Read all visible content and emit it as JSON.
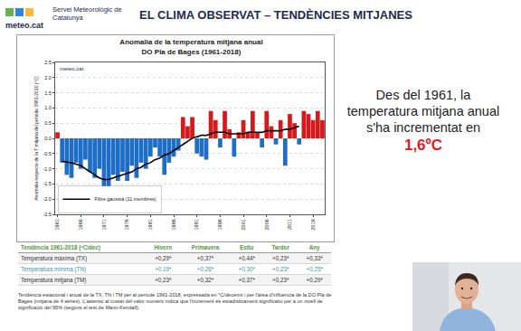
{
  "header": {
    "logo": "meteo.cat",
    "organization": "Servei Meteorològic de Catalunya",
    "title": "EL CLIMA OBSERVAT – TENDÈNCIES MITJANES"
  },
  "chart_data": {
    "type": "bar",
    "title": "Anomalia de la temperatura mitjana anual",
    "subtitle": "DO Pla de Bages (1961-2018)",
    "y_label": "Anomalia respecte de la T mitjana del període 1981-2010 (°C)",
    "annotations": [
      "meteo.cat"
    ],
    "x": [
      1961,
      1962,
      1963,
      1964,
      1965,
      1966,
      1967,
      1968,
      1969,
      1970,
      1971,
      1972,
      1973,
      1974,
      1975,
      1976,
      1977,
      1978,
      1979,
      1980,
      1981,
      1982,
      1983,
      1984,
      1985,
      1986,
      1987,
      1988,
      1989,
      1990,
      1991,
      1992,
      1993,
      1994,
      1995,
      1996,
      1997,
      1998,
      1999,
      2000,
      2001,
      2002,
      2003,
      2004,
      2005,
      2006,
      2007,
      2008,
      2009,
      2010,
      2011,
      2012,
      2013,
      2014,
      2015,
      2016,
      2017,
      2018
    ],
    "series": [
      {
        "type": "bar",
        "values": [
          0.2,
          -0.8,
          -1.2,
          -1.3,
          -0.8,
          -1.0,
          -0.7,
          -1.1,
          -1.3,
          -1.0,
          -1.6,
          -1.9,
          -1.2,
          -1.4,
          -1.1,
          -1.4,
          -0.9,
          -1.3,
          -0.8,
          -1.0,
          -0.6,
          -0.3,
          -0.6,
          -1.2,
          -0.8,
          -0.6,
          -0.4,
          0.7,
          0.4,
          0.7,
          -0.5,
          -0.6,
          -0.7,
          0.9,
          0.6,
          -0.3,
          0.9,
          0.3,
          -0.6,
          0.2,
          0.6,
          0.2,
          0.9,
          0.2,
          -0.3,
          0.9,
          0.4,
          -0.2,
          0.6,
          -0.9,
          0.8,
          0.5,
          -0.2,
          0.9,
          0.8,
          0.6,
          0.9,
          0.6
        ],
        "colors": [
          "#d7191c",
          "#1e6ec8",
          "#1e6ec8",
          "#1e6ec8",
          "#1e6ec8",
          "#1e6ec8",
          "#1e6ec8",
          "#1e6ec8",
          "#1e6ec8",
          "#1e6ec8",
          "#1e6ec8",
          "#1e6ec8",
          "#1e6ec8",
          "#1e6ec8",
          "#1e6ec8",
          "#1e6ec8",
          "#1e6ec8",
          "#1e6ec8",
          "#1e6ec8",
          "#1e6ec8",
          "#1e6ec8",
          "#1e6ec8",
          "#1e6ec8",
          "#1e6ec8",
          "#1e6ec8",
          "#1e6ec8",
          "#1e6ec8",
          "#d7191c",
          "#d7191c",
          "#d7191c",
          "#1e6ec8",
          "#1e6ec8",
          "#1e6ec8",
          "#d7191c",
          "#d7191c",
          "#1e6ec8",
          "#d7191c",
          "#d7191c",
          "#1e6ec8",
          "#d7191c",
          "#d7191c",
          "#d7191c",
          "#d7191c",
          "#d7191c",
          "#1e6ec8",
          "#d7191c",
          "#d7191c",
          "#1e6ec8",
          "#d7191c",
          "#1e6ec8",
          "#d7191c",
          "#d7191c",
          "#1e6ec8",
          "#d7191c",
          "#d7191c",
          "#d7191c",
          "#d7191c",
          "#d7191c"
        ]
      },
      {
        "type": "line",
        "name": "Filtre gaussià (11 membres)",
        "color": "#000000",
        "values": [
          null,
          -0.75,
          -0.78,
          -0.8,
          -0.85,
          -0.9,
          -1.0,
          -1.1,
          -1.2,
          -1.3,
          -1.35,
          -1.35,
          -1.3,
          -1.25,
          -1.2,
          -1.15,
          -1.1,
          -1.0,
          -0.95,
          -0.85,
          -0.8,
          -0.7,
          -0.65,
          -0.55,
          -0.5,
          -0.4,
          -0.3,
          -0.2,
          -0.1,
          0.0,
          0.05,
          0.1,
          0.1,
          0.15,
          0.2,
          0.2,
          0.2,
          0.15,
          0.15,
          0.15,
          0.15,
          0.2,
          0.2,
          0.2,
          0.2,
          0.25,
          0.25,
          0.25,
          0.25,
          0.3,
          0.3,
          0.35,
          0.4,
          null,
          null,
          null,
          null,
          null
        ]
      }
    ],
    "xlim": [
      1960.5,
      2018.5
    ],
    "xticks": [
      1961,
      1966,
      1971,
      1976,
      1981,
      1986,
      1991,
      1996,
      2001,
      2006,
      2011,
      2016
    ],
    "ylim": [
      -2.5,
      2.5
    ],
    "yticks": [
      -2.5,
      {
        "value": -2.0,
        "label": "-2.0"
      },
      -1.5,
      {
        "value": -1.0,
        "label": "-1.0"
      },
      -0.5,
      {
        "value": 0,
        "label": "0.0"
      },
      0.5,
      {
        "value": 1.0,
        "label": "1.0"
      },
      1.5,
      {
        "value": 2.0,
        "label": "2.0"
      },
      2.5
    ],
    "grid": true,
    "legend": "lower left"
  },
  "highlight": {
    "text": "Des del 1961, la temperatura mitjana anual s'ha incrementat en",
    "value": "1,6ºC"
  },
  "table": {
    "header": [
      "Tendència 1961-2018 (ºC/dec)",
      "Hivern",
      "Primavera",
      "Estiu",
      "Tardor",
      "Any"
    ],
    "rows": [
      [
        "Temperatura màxima (TX)",
        "+0,29*",
        "+0,37*",
        "+0,44*",
        "+0,23*",
        "+0,33*"
      ],
      [
        "Temperatura mínima (TN)",
        "+0,19*",
        "+0,26*",
        "+0,30*",
        "+0,23*",
        "+0,25*"
      ],
      [
        "Temperatura mitjana (TM)",
        "+0,23*",
        "+0,32*",
        "+0,37*",
        "+0,23*",
        "+0,29*"
      ]
    ]
  },
  "caption": "Tendència estacional i anual de la TX, TN i TM per al període 1961-2018, expressada en °C/decenni i per l'àrea d'influència de la DO Pla de Bages (mitjana de 4 sèries). L'asterisc al costat del valor numèric indica que l'increment és estadísticament significatiu per a un nivell de significació del 95% (segons el test de Mann-Kendall)."
}
